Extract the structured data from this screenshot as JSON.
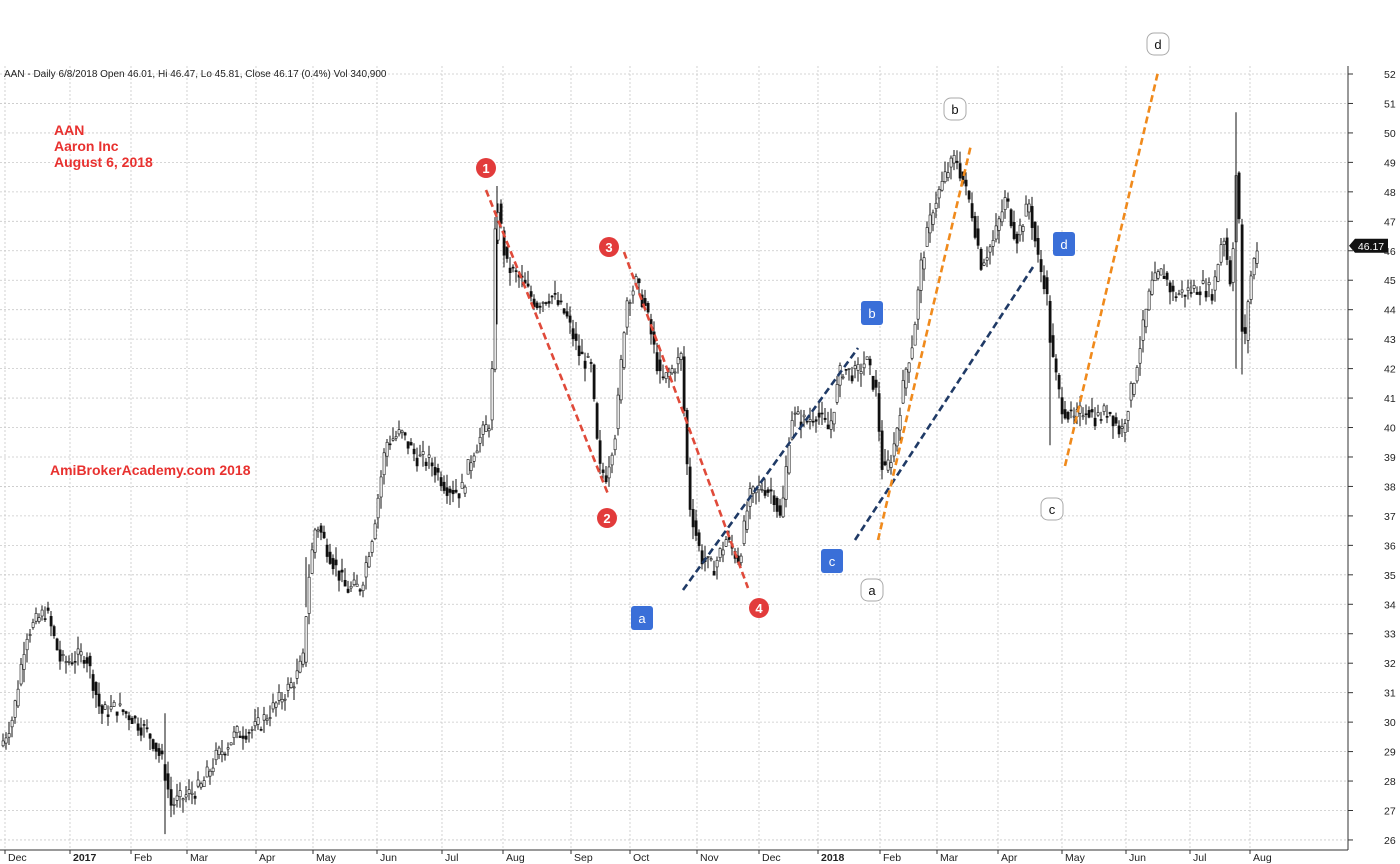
{
  "header": {
    "info": "AAN - Daily 6/8/2018 Open 46.01, Hi 46.47, Lo 45.81, Close 46.17 (0.4%) Vol 340,900"
  },
  "annotations": {
    "ticker": "AAN",
    "company": "Aaron Inc",
    "date": "August 6, 2018",
    "watermark": "AmiBrokerAcademy.com  2018"
  },
  "price_tag": "46.17",
  "colors": {
    "red_marker": "#e23b3b",
    "red_trend": "#e04a3a",
    "blue_marker": "#3a6fd8",
    "navy_trend": "#1f3a66",
    "orange_trend": "#f08a1c",
    "grid": "#c8c8c8"
  },
  "chart_data": {
    "type": "candlestick",
    "ylim": [
      25.7,
      52.2
    ],
    "y_ticks": [
      26,
      27,
      28,
      29,
      30,
      31,
      32,
      33,
      34,
      35,
      36,
      37,
      38,
      39,
      40,
      41,
      42,
      43,
      44,
      45,
      46,
      47,
      48,
      49,
      50,
      51,
      52
    ],
    "x_month_labels": [
      "Dec",
      "2017",
      "Feb",
      "Mar",
      "Apr",
      "May",
      "Jun",
      "Jul",
      "Aug",
      "Sep",
      "Oct",
      "Nov",
      "Dec",
      "2018",
      "Feb",
      "Mar",
      "Apr",
      "May",
      "Jun",
      "Jul",
      "Aug"
    ],
    "grid": true,
    "approx_close_path": [
      [
        0,
        29.2
      ],
      [
        12,
        30.2
      ],
      [
        25,
        33.0
      ],
      [
        45,
        33.8
      ],
      [
        60,
        32.0
      ],
      [
        85,
        32.3
      ],
      [
        100,
        30.3
      ],
      [
        115,
        30.5
      ],
      [
        130,
        30.2
      ],
      [
        150,
        29.5
      ],
      [
        162,
        28.6
      ],
      [
        170,
        27.2
      ],
      [
        185,
        27.5
      ],
      [
        200,
        27.8
      ],
      [
        215,
        28.8
      ],
      [
        235,
        29.6
      ],
      [
        255,
        29.8
      ],
      [
        275,
        30.6
      ],
      [
        295,
        31.5
      ],
      [
        303,
        32.2
      ],
      [
        306,
        34.5
      ],
      [
        315,
        36.8
      ],
      [
        330,
        35.6
      ],
      [
        345,
        34.5
      ],
      [
        360,
        34.6
      ],
      [
        372,
        36.5
      ],
      [
        385,
        39.5
      ],
      [
        400,
        39.8
      ],
      [
        415,
        39.0
      ],
      [
        430,
        38.8
      ],
      [
        445,
        38.0
      ],
      [
        460,
        37.8
      ],
      [
        472,
        39.2
      ],
      [
        485,
        40.0
      ],
      [
        490,
        40.3
      ],
      [
        495,
        48.0
      ],
      [
        505,
        45.5
      ],
      [
        520,
        45.0
      ],
      [
        535,
        44.2
      ],
      [
        550,
        44.5
      ],
      [
        565,
        43.8
      ],
      [
        578,
        42.5
      ],
      [
        590,
        42.0
      ],
      [
        598,
        38.6
      ],
      [
        605,
        38.4
      ],
      [
        615,
        40.0
      ],
      [
        625,
        44.3
      ],
      [
        635,
        44.9
      ],
      [
        645,
        44.0
      ],
      [
        660,
        41.5
      ],
      [
        672,
        42.0
      ],
      [
        680,
        42.4
      ],
      [
        688,
        37.5
      ],
      [
        700,
        35.6
      ],
      [
        712,
        35.2
      ],
      [
        725,
        36.2
      ],
      [
        738,
        35.5
      ],
      [
        748,
        37.6
      ],
      [
        760,
        38.0
      ],
      [
        772,
        37.8
      ],
      [
        780,
        36.8
      ],
      [
        790,
        40.4
      ],
      [
        805,
        40.2
      ],
      [
        815,
        40.5
      ],
      [
        828,
        39.9
      ],
      [
        840,
        42.0
      ],
      [
        855,
        41.8
      ],
      [
        865,
        42.3
      ],
      [
        875,
        41.2
      ],
      [
        882,
        38.3
      ],
      [
        892,
        39.2
      ],
      [
        905,
        42.0
      ],
      [
        912,
        43.0
      ],
      [
        920,
        45.5
      ],
      [
        932,
        47.5
      ],
      [
        945,
        48.6
      ],
      [
        955,
        49.2
      ],
      [
        962,
        48.3
      ],
      [
        970,
        47.5
      ],
      [
        980,
        45.6
      ],
      [
        992,
        46.3
      ],
      [
        1005,
        47.8
      ],
      [
        1015,
        46.4
      ],
      [
        1028,
        47.6
      ],
      [
        1038,
        45.5
      ],
      [
        1045,
        44.8
      ],
      [
        1050,
        42.6
      ],
      [
        1060,
        40.8
      ],
      [
        1072,
        40.2
      ],
      [
        1085,
        40.7
      ],
      [
        1095,
        40.3
      ],
      [
        1108,
        40.6
      ],
      [
        1120,
        39.8
      ],
      [
        1132,
        41.5
      ],
      [
        1140,
        43.0
      ],
      [
        1150,
        44.8
      ],
      [
        1162,
        45.3
      ],
      [
        1172,
        44.5
      ],
      [
        1185,
        44.6
      ],
      [
        1200,
        44.8
      ],
      [
        1212,
        44.6
      ],
      [
        1222,
        46.7
      ],
      [
        1230,
        44.8
      ],
      [
        1236,
        49.3
      ],
      [
        1242,
        42.1
      ],
      [
        1248,
        44.8
      ],
      [
        1256,
        46.2
      ]
    ],
    "labels": [
      {
        "text": "1",
        "style": "red-circle"
      },
      {
        "text": "2",
        "style": "red-circle"
      },
      {
        "text": "3",
        "style": "red-circle"
      },
      {
        "text": "4",
        "style": "red-circle"
      },
      {
        "text": "a",
        "style": "blue-square"
      },
      {
        "text": "b",
        "style": "blue-square"
      },
      {
        "text": "c",
        "style": "blue-square"
      },
      {
        "text": "d",
        "style": "blue-square"
      },
      {
        "text": "a",
        "style": "white-round"
      },
      {
        "text": "b",
        "style": "white-round"
      },
      {
        "text": "c",
        "style": "white-round"
      },
      {
        "text": "d",
        "style": "white-round"
      }
    ]
  }
}
